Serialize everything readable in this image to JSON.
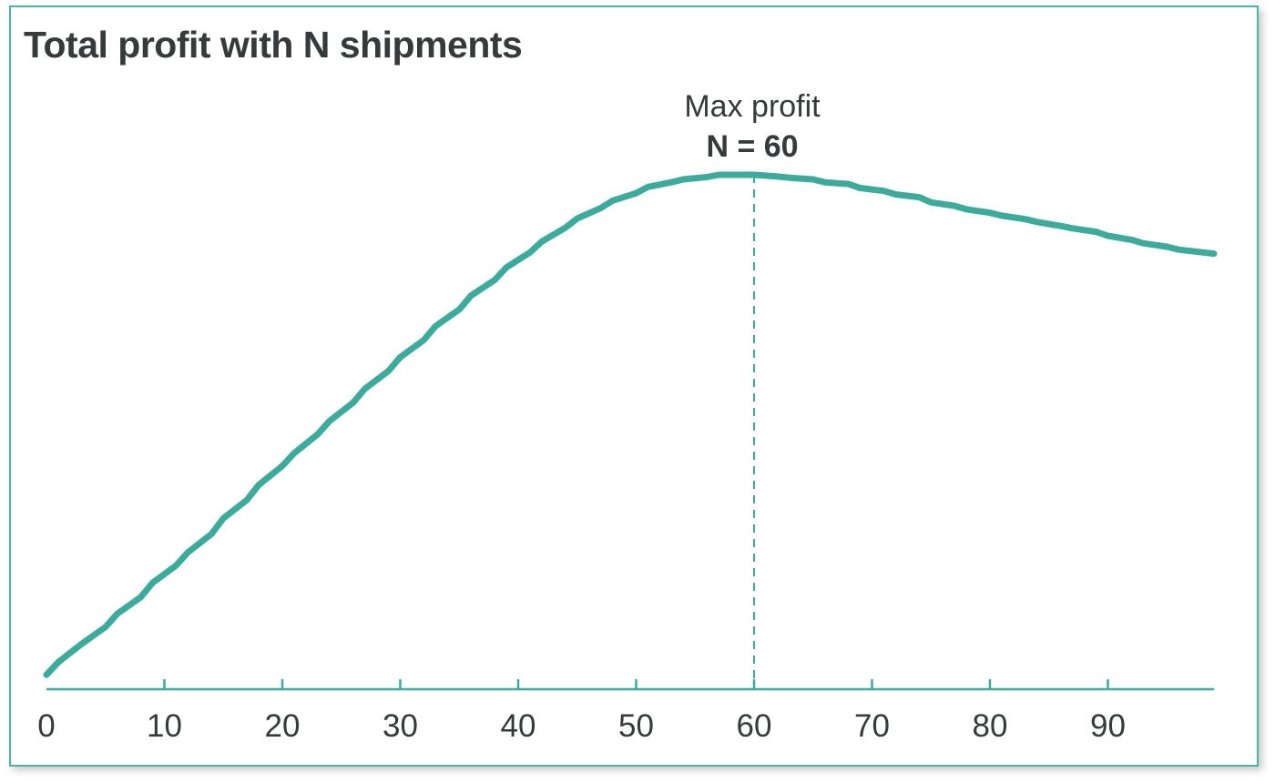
{
  "chart_data": {
    "type": "line",
    "title": "Total profit with N shipments",
    "xlabel": "",
    "ylabel": "",
    "xlim": [
      0,
      99
    ],
    "ylim": [
      0,
      100
    ],
    "x_ticks": [
      0,
      10,
      20,
      30,
      40,
      50,
      60,
      70,
      80,
      90
    ],
    "series": [
      {
        "name": "Total profit",
        "color": "#3dab9c",
        "x": [
          0,
          1,
          3,
          5,
          6,
          8,
          9,
          11,
          12,
          14,
          15,
          17,
          18,
          20,
          21,
          23,
          24,
          26,
          27,
          29,
          30,
          32,
          33,
          35,
          36,
          38,
          39,
          41,
          42,
          44,
          45,
          47,
          48,
          50,
          51,
          53,
          54,
          56,
          57,
          60,
          62,
          63,
          65,
          66,
          68,
          69,
          71,
          72,
          74,
          75,
          77,
          78,
          80,
          81,
          83,
          84,
          86,
          87,
          89,
          90,
          92,
          93,
          95,
          96,
          99
        ],
        "values": [
          2.5,
          4.7,
          7.9,
          10.8,
          13.1,
          16.0,
          18.5,
          21.5,
          23.8,
          27.0,
          29.7,
          32.9,
          35.5,
          38.8,
          41.0,
          44.3,
          46.6,
          49.8,
          52.2,
          55.3,
          57.7,
          60.7,
          63.1,
          66.0,
          68.4,
          71.1,
          73.3,
          75.9,
          77.8,
          80.2,
          81.8,
          83.6,
          84.9,
          86.2,
          87.3,
          88.1,
          88.6,
          89.0,
          89.4,
          89.4,
          89.1,
          88.9,
          88.6,
          88.1,
          87.8,
          87.1,
          86.6,
          86.0,
          85.5,
          84.6,
          84.0,
          83.4,
          82.8,
          82.3,
          81.7,
          81.2,
          80.5,
          80.1,
          79.5,
          78.8,
          78.1,
          77.5,
          76.9,
          76.4,
          75.7
        ]
      }
    ],
    "annotation": {
      "x": 60,
      "line_top_value": 89.4,
      "label_line1": "Max profit",
      "label_line2": "N = 60"
    },
    "colors": {
      "line": "#3dab9c",
      "axis": "#3dab9c",
      "border": "#4db3a6",
      "text": "#363a3a"
    }
  }
}
